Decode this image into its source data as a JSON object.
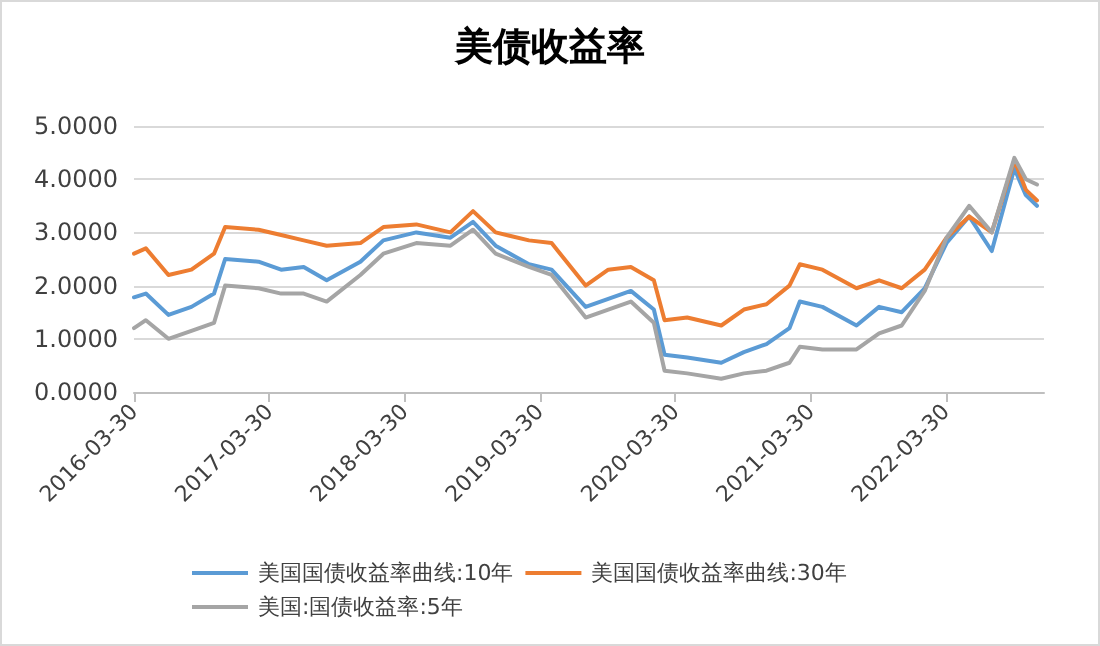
{
  "chart_data": {
    "type": "line",
    "title": "美债收益率",
    "x": [
      "2016-03-30",
      "2016-05",
      "2016-07",
      "2016-09",
      "2016-11",
      "2016-12",
      "2017-03",
      "2017-05",
      "2017-07",
      "2017-09",
      "2017-12",
      "2018-02",
      "2018-05",
      "2018-08",
      "2018-10",
      "2018-12",
      "2019-03",
      "2019-05",
      "2019-08",
      "2019-10",
      "2019-12",
      "2020-02",
      "2020-03",
      "2020-05",
      "2020-08",
      "2020-10",
      "2020-12",
      "2021-02",
      "2021-03",
      "2021-05",
      "2021-08",
      "2021-10",
      "2021-12",
      "2022-02",
      "2022-04",
      "2022-06",
      "2022-08",
      "2022-10",
      "2022-11",
      "2022-12"
    ],
    "series": [
      {
        "name": "美国国债收益率曲线:10年",
        "color": "#5b9bd5",
        "values": [
          1.78,
          1.85,
          1.45,
          1.6,
          1.85,
          2.5,
          2.45,
          2.3,
          2.35,
          2.1,
          2.45,
          2.85,
          3.0,
          2.9,
          3.2,
          2.75,
          2.4,
          2.3,
          1.6,
          1.75,
          1.9,
          1.55,
          0.7,
          0.65,
          0.55,
          0.75,
          0.9,
          1.2,
          1.7,
          1.6,
          1.25,
          1.6,
          1.5,
          1.95,
          2.8,
          3.3,
          2.65,
          4.2,
          3.7,
          3.5
        ]
      },
      {
        "name": "美国国债收益率曲线:30年",
        "color": "#ed7d31",
        "values": [
          2.6,
          2.7,
          2.2,
          2.3,
          2.6,
          3.1,
          3.05,
          2.95,
          2.85,
          2.75,
          2.8,
          3.1,
          3.15,
          3.0,
          3.4,
          3.0,
          2.85,
          2.8,
          2.0,
          2.3,
          2.35,
          2.1,
          1.35,
          1.4,
          1.25,
          1.55,
          1.65,
          2.0,
          2.4,
          2.3,
          1.95,
          2.1,
          1.95,
          2.3,
          2.9,
          3.3,
          3.0,
          4.35,
          3.8,
          3.6
        ]
      },
      {
        "name": "美国:国债收益率:5年",
        "color": "#a5a5a5",
        "values": [
          1.2,
          1.35,
          1.0,
          1.15,
          1.3,
          2.0,
          1.95,
          1.85,
          1.85,
          1.7,
          2.2,
          2.6,
          2.8,
          2.75,
          3.05,
          2.6,
          2.35,
          2.2,
          1.4,
          1.55,
          1.7,
          1.3,
          0.4,
          0.35,
          0.25,
          0.35,
          0.4,
          0.55,
          0.85,
          0.8,
          0.8,
          1.1,
          1.25,
          1.9,
          2.9,
          3.5,
          3.0,
          4.4,
          4.0,
          3.9
        ]
      }
    ],
    "xlim": [
      "2016-03-30",
      "2022-12-20"
    ],
    "xticks": [
      "2016-03-30",
      "2017-03-30",
      "2018-03-30",
      "2019-03-30",
      "2020-03-30",
      "2021-03-30",
      "2022-03-30"
    ],
    "ylim": [
      0,
      5
    ],
    "yticks": [
      {
        "value": 0,
        "label": "0.0000"
      },
      {
        "value": 1,
        "label": "1.0000"
      },
      {
        "value": 2,
        "label": "2.0000"
      },
      {
        "value": 3,
        "label": "3.0000"
      },
      {
        "value": 4,
        "label": "4.0000"
      },
      {
        "value": 5,
        "label": "5.0000"
      }
    ],
    "grid": "y",
    "legend": "bottom",
    "marker": "none",
    "line_style": "solid"
  }
}
